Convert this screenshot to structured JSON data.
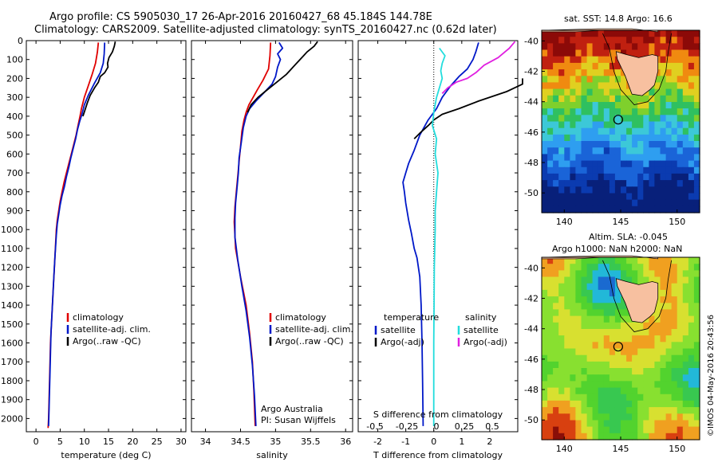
{
  "header": {
    "title_line1": "Argo profile: CS 5905030_17 26-Apr-2016 20160427_68 45.184S 144.78E",
    "title_line2": "Climatology: CARS2009. Satellite-adjusted climatology: synTS_20160427.nc (0.62d later)"
  },
  "colors": {
    "climatology": "#e00000",
    "satellite": "#0018c8",
    "argo": "#000000",
    "sal_satellite": "#22dddd",
    "sal_argo": "#e020e0"
  },
  "chart_data": [
    {
      "id": "temperature",
      "type": "line",
      "xlabel": "temperature (deg C)",
      "ylabel": "",
      "xlim": [
        -2,
        31
      ],
      "ylim": [
        2070,
        0
      ],
      "xticks": [
        "0",
        "5",
        "10",
        "15",
        "20",
        "25",
        "30"
      ],
      "yticks": [
        "0",
        "100",
        "200",
        "300",
        "400",
        "500",
        "600",
        "700",
        "800",
        "900",
        "1000",
        "1100",
        "1200",
        "1300",
        "1400",
        "1500",
        "1600",
        "1700",
        "1800",
        "1900",
        "2000"
      ],
      "legend": [
        "climatology",
        "satellite-adj. clim.",
        "Argo(..raw -QC)"
      ],
      "series": [
        {
          "name": "climatology",
          "color": "red",
          "points": [
            [
              12.9,
              10
            ],
            [
              12.7,
              60
            ],
            [
              12.3,
              120
            ],
            [
              11.6,
              180
            ],
            [
              10.8,
              240
            ],
            [
              10,
              300
            ],
            [
              9.4,
              360
            ],
            [
              9.1,
              400
            ],
            [
              8.7,
              450
            ],
            [
              8.3,
              500
            ],
            [
              7.8,
              550
            ],
            [
              7.3,
              600
            ],
            [
              6.8,
              650
            ],
            [
              6.3,
              700
            ],
            [
              5.8,
              750
            ],
            [
              5.4,
              800
            ],
            [
              5,
              850
            ],
            [
              4.7,
              900
            ],
            [
              4.4,
              950
            ],
            [
              4.2,
              1000
            ],
            [
              4,
              1100
            ],
            [
              3.8,
              1200
            ],
            [
              3.6,
              1300
            ],
            [
              3.4,
              1400
            ],
            [
              3.2,
              1500
            ],
            [
              3,
              1600
            ],
            [
              2.9,
              1700
            ],
            [
              2.8,
              1800
            ],
            [
              2.7,
              1900
            ],
            [
              2.6,
              2000
            ],
            [
              2.5,
              2050
            ]
          ]
        },
        {
          "name": "satellite-adj. clim.",
          "color": "blue",
          "points": [
            [
              14.2,
              10
            ],
            [
              14.1,
              70
            ],
            [
              13.9,
              120
            ],
            [
              13.3,
              170
            ],
            [
              12,
              230
            ],
            [
              10.8,
              290
            ],
            [
              10,
              340
            ],
            [
              9.5,
              390
            ],
            [
              9,
              430
            ],
            [
              8.6,
              470
            ],
            [
              8.2,
              520
            ],
            [
              7.7,
              570
            ],
            [
              7.2,
              620
            ],
            [
              6.8,
              670
            ],
            [
              6.3,
              720
            ],
            [
              5.9,
              770
            ],
            [
              5.4,
              820
            ],
            [
              5,
              870
            ],
            [
              4.7,
              920
            ],
            [
              4.4,
              970
            ],
            [
              4.2,
              1030
            ],
            [
              3.9,
              1150
            ],
            [
              3.7,
              1250
            ],
            [
              3.5,
              1350
            ],
            [
              3.3,
              1450
            ],
            [
              3.1,
              1550
            ],
            [
              3,
              1650
            ],
            [
              2.9,
              1750
            ],
            [
              2.8,
              1850
            ],
            [
              2.7,
              1950
            ],
            [
              2.6,
              2040
            ]
          ]
        },
        {
          "name": "Argo(..raw -QC)",
          "color": "black",
          "points": [
            [
              16.4,
              5
            ],
            [
              16.2,
              30
            ],
            [
              15.8,
              60
            ],
            [
              15.1,
              90
            ],
            [
              14.8,
              120
            ],
            [
              14.9,
              140
            ],
            [
              14.2,
              170
            ],
            [
              13.3,
              190
            ],
            [
              12.9,
              220
            ],
            [
              12.1,
              250
            ],
            [
              11.2,
              290
            ],
            [
              10.6,
              330
            ],
            [
              10.1,
              370
            ],
            [
              9.7,
              400
            ]
          ]
        }
      ]
    },
    {
      "id": "salinity",
      "type": "line",
      "xlabel": "salinity",
      "xlim": [
        33.8,
        36.1
      ],
      "ylim": [
        2070,
        0
      ],
      "xticks": [
        "34",
        "34.5",
        "35",
        "35.5",
        "36"
      ],
      "legend": [
        "climatology",
        "satellite-adj. clim.",
        "Argo(..raw -QC)"
      ],
      "annotation": [
        "Argo Australia",
        "PI: Susan Wijffels"
      ],
      "series": [
        {
          "name": "climatology",
          "color": "red",
          "points": [
            [
              34.93,
              10
            ],
            [
              34.92,
              80
            ],
            [
              34.9,
              150
            ],
            [
              34.82,
              210
            ],
            [
              34.74,
              260
            ],
            [
              34.68,
              300
            ],
            [
              34.62,
              340
            ],
            [
              34.58,
              380
            ],
            [
              34.55,
              420
            ],
            [
              34.52,
              480
            ],
            [
              34.5,
              560
            ],
            [
              34.48,
              640
            ],
            [
              34.46,
              720
            ],
            [
              34.44,
              800
            ],
            [
              34.42,
              880
            ],
            [
              34.41,
              960
            ],
            [
              34.43,
              1100
            ],
            [
              34.5,
              1250
            ],
            [
              34.58,
              1400
            ],
            [
              34.63,
              1550
            ],
            [
              34.67,
              1700
            ],
            [
              34.69,
              1850
            ],
            [
              34.71,
              2040
            ]
          ]
        },
        {
          "name": "satellite-adj. clim.",
          "color": "blue",
          "points": [
            [
              35.05,
              10
            ],
            [
              35.1,
              40
            ],
            [
              35.03,
              70
            ],
            [
              35.07,
              100
            ],
            [
              35.03,
              140
            ],
            [
              35,
              190
            ],
            [
              34.95,
              230
            ],
            [
              34.85,
              270
            ],
            [
              34.72,
              320
            ],
            [
              34.63,
              360
            ],
            [
              34.58,
              400
            ],
            [
              34.54,
              460
            ],
            [
              34.51,
              540
            ],
            [
              34.48,
              620
            ],
            [
              34.47,
              700
            ],
            [
              34.45,
              780
            ],
            [
              34.43,
              860
            ],
            [
              34.42,
              940
            ],
            [
              34.42,
              1040
            ],
            [
              34.46,
              1160
            ],
            [
              34.52,
              1300
            ],
            [
              34.58,
              1430
            ],
            [
              34.63,
              1570
            ],
            [
              34.67,
              1720
            ],
            [
              34.7,
              1880
            ],
            [
              34.72,
              2040
            ]
          ]
        },
        {
          "name": "Argo(..raw -QC)",
          "color": "black",
          "points": [
            [
              35.6,
              5
            ],
            [
              35.55,
              30
            ],
            [
              35.45,
              60
            ],
            [
              35.4,
              80
            ],
            [
              35.35,
              100
            ],
            [
              35.3,
              120
            ],
            [
              35.25,
              140
            ],
            [
              35.2,
              160
            ],
            [
              35.15,
              180
            ],
            [
              35.05,
              210
            ],
            [
              34.95,
              240
            ],
            [
              34.85,
              270
            ],
            [
              34.75,
              300
            ],
            [
              34.65,
              340
            ],
            [
              34.6,
              380
            ]
          ]
        }
      ]
    },
    {
      "id": "difference",
      "type": "line",
      "xlabel": "T difference from climatology",
      "xlabel_top": "S difference from climatology",
      "xlim": [
        -2.7,
        3
      ],
      "ylim": [
        2070,
        0
      ],
      "xticks": [
        "-2",
        "-1",
        "0",
        "1",
        "2"
      ],
      "xticks_top": [
        "-0.5",
        "-0.25",
        "0",
        "0.25",
        "0.5"
      ],
      "legend_temperature_title": "temperature",
      "legend_salinity_title": "salinity",
      "legend": [
        "satellite",
        "Argo(-adj)",
        "satellite",
        "Argo(-adj)"
      ],
      "series": [
        {
          "name": "temperature satellite",
          "color": "blue",
          "points": [
            [
              1.6,
              10
            ],
            [
              1.5,
              60
            ],
            [
              1.4,
              100
            ],
            [
              1.2,
              150
            ],
            [
              0.9,
              190
            ],
            [
              0.6,
              240
            ],
            [
              0.3,
              300
            ],
            [
              0.1,
              360
            ],
            [
              -0.2,
              420
            ],
            [
              -0.5,
              500
            ],
            [
              -0.7,
              580
            ],
            [
              -0.9,
              650
            ],
            [
              -1,
              700
            ],
            [
              -1.1,
              750
            ],
            [
              -1.05,
              800
            ],
            [
              -1,
              860
            ],
            [
              -0.9,
              950
            ],
            [
              -0.8,
              1020
            ],
            [
              -0.7,
              1100
            ],
            [
              -0.6,
              1150
            ],
            [
              -0.5,
              1250
            ],
            [
              -0.45,
              1400
            ],
            [
              -0.42,
              1600
            ],
            [
              -0.4,
              1800
            ],
            [
              -0.38,
              2040
            ]
          ]
        },
        {
          "name": "temperature Argo(-adj)",
          "color": "black",
          "points": [
            [
              4,
              200
            ],
            [
              3.5,
              230
            ],
            [
              2.6,
              270
            ],
            [
              1.6,
              320
            ],
            [
              0.9,
              360
            ],
            [
              0.3,
              390
            ],
            [
              0,
              420
            ],
            [
              -0.2,
              450
            ],
            [
              -0.5,
              490
            ],
            [
              -0.7,
              520
            ]
          ]
        },
        {
          "name": "salinity satellite",
          "color": "cyan",
          "points": [
            [
              0.2,
              40
            ],
            [
              0.4,
              80
            ],
            [
              0.3,
              120
            ],
            [
              0.25,
              160
            ],
            [
              0.3,
              200
            ],
            [
              0.2,
              250
            ],
            [
              0.1,
              300
            ],
            [
              0,
              380
            ],
            [
              -0.05,
              450
            ],
            [
              0.1,
              520
            ],
            [
              0.05,
              600
            ],
            [
              0.15,
              700
            ],
            [
              0.1,
              800
            ],
            [
              0.05,
              900
            ],
            [
              0.05,
              1000
            ],
            [
              0.02,
              1200
            ],
            [
              0.01,
              1400
            ],
            [
              0,
              1600
            ],
            [
              0,
              1800
            ],
            [
              0,
              2040
            ]
          ]
        },
        {
          "name": "salinity Argo(-adj)",
          "color": "magenta",
          "points": [
            [
              2.9,
              5
            ],
            [
              2.7,
              40
            ],
            [
              2.3,
              90
            ],
            [
              1.8,
              130
            ],
            [
              1.5,
              170
            ],
            [
              1.2,
              200
            ],
            [
              0.8,
              220
            ],
            [
              0.5,
              250
            ],
            [
              0.3,
              280
            ]
          ]
        }
      ]
    }
  ],
  "map_sst": {
    "title": "sat. SST: 14.8 Argo: 16.6",
    "xticks": [
      "140",
      "145",
      "150"
    ],
    "yticks": [
      "-40",
      "-42",
      "-44",
      "-46",
      "-48",
      "-50"
    ]
  },
  "map_sla": {
    "title_line1": "Altim. SLA: -0.045",
    "title_line2": "Argo h1000: NaN h2000: NaN",
    "xticks": [
      "140",
      "145",
      "150"
    ],
    "yticks": [
      "-40",
      "-42",
      "-44",
      "-46",
      "-48",
      "-50"
    ]
  },
  "footer": {
    "stamp": "©IMOS 04-May-2016 20:43:56"
  }
}
